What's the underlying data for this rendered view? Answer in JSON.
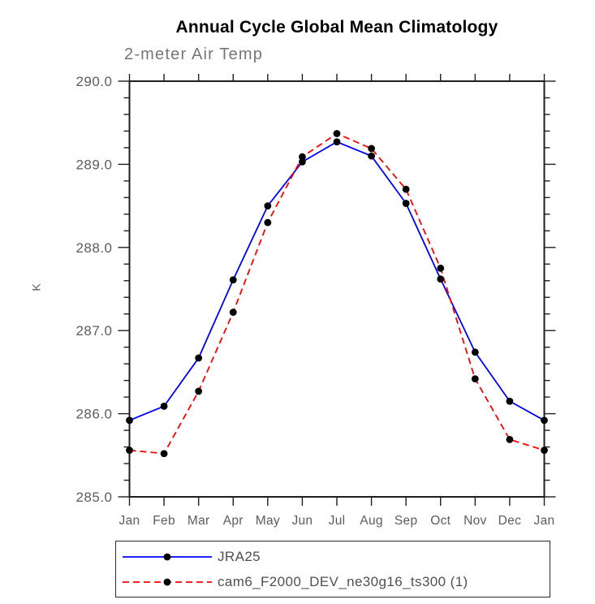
{
  "window": {
    "background_color": "#ffffff"
  },
  "chart_data": {
    "type": "line",
    "title": "Annual Cycle Global Mean Climatology",
    "subtitle": "2-meter Air Temp",
    "ylabel": "K",
    "xlabel": "",
    "categories": [
      "Jan",
      "Feb",
      "Mar",
      "Apr",
      "May",
      "Jun",
      "Jul",
      "Aug",
      "Sep",
      "Oct",
      "Nov",
      "Dec",
      "Jan"
    ],
    "ylim": [
      285.0,
      290.0
    ],
    "ytick_major": 1.0,
    "ytick_minor": 0.2,
    "ytick_labels": [
      "285.0",
      "286.0",
      "287.0",
      "288.0",
      "289.0",
      "290.0"
    ],
    "grid": false,
    "legend_position": "bottom-left",
    "axis_color": "#1f1f1f",
    "text_color": "#5c5c5c",
    "series": [
      {
        "name": "JRA25",
        "color": "#0000ff",
        "line_style": "solid",
        "marker": "filled-circle",
        "marker_color": "#000000",
        "values": [
          285.92,
          286.09,
          286.67,
          287.61,
          288.5,
          289.03,
          289.27,
          289.1,
          288.53,
          287.62,
          286.74,
          286.15,
          285.92
        ]
      },
      {
        "name": "cam6_F2000_DEV_ne30g16_ts300 (1)",
        "color": "#ff0000",
        "line_style": "dashed",
        "marker": "filled-circle",
        "marker_color": "#000000",
        "values": [
          285.56,
          285.52,
          286.27,
          287.22,
          288.3,
          289.09,
          289.37,
          289.19,
          288.7,
          287.75,
          286.42,
          285.69,
          285.56
        ]
      }
    ]
  }
}
